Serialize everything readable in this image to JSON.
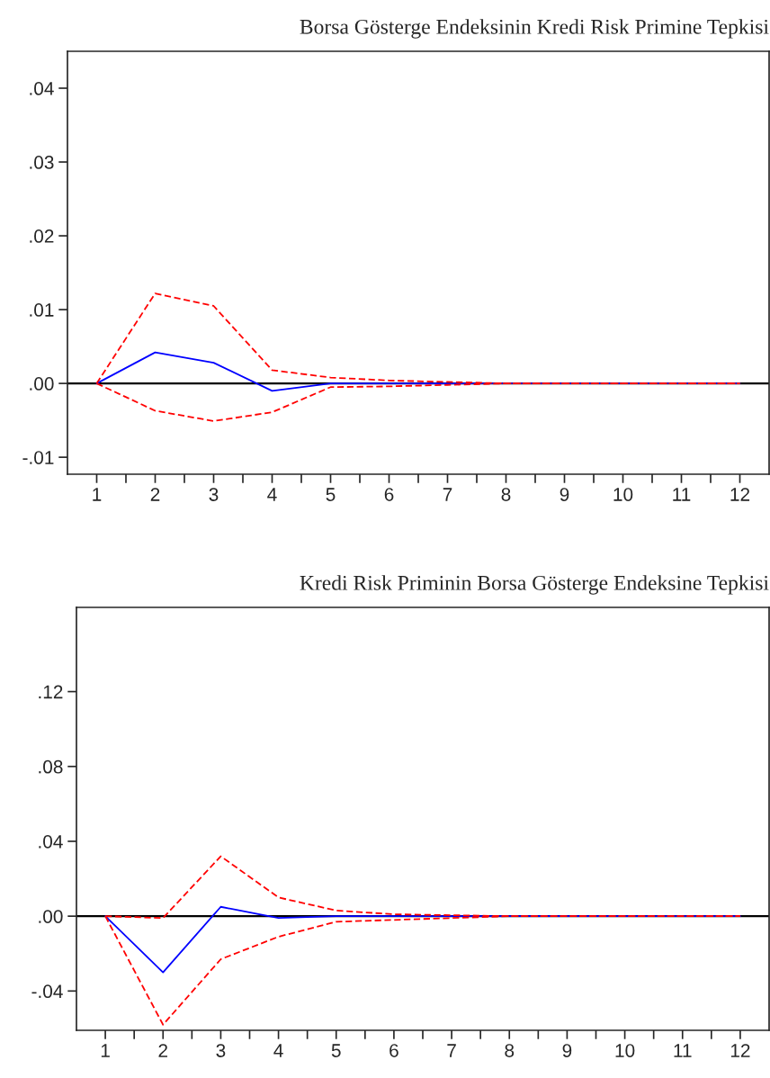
{
  "chart_data": [
    {
      "type": "line",
      "title": "Borsa Gösterge Endeksinin Kredi Risk Primine Tepkisi",
      "x": [
        1,
        2,
        3,
        4,
        5,
        6,
        7,
        8,
        9,
        10,
        11,
        12
      ],
      "series": [
        {
          "color": "#0000ff",
          "line_style": "solid",
          "values": [
            0,
            0.0042,
            0.0028,
            -0.001,
            0,
            0,
            0,
            0,
            0,
            0,
            0,
            0
          ]
        },
        {
          "color": "#ff0000",
          "line_style": "dashed",
          "values": [
            0,
            0.0122,
            0.0105,
            0.0018,
            0.0008,
            0.0004,
            0.0002,
            0,
            0,
            0,
            0,
            0
          ]
        },
        {
          "color": "#ff0000",
          "line_style": "dashed",
          "values": [
            0,
            -0.0037,
            -0.0051,
            -0.0039,
            -0.0005,
            -0.0004,
            -0.0002,
            0,
            0,
            0,
            0,
            0
          ]
        }
      ],
      "xlim": [
        0.5,
        12.5
      ],
      "ylim": [
        -0.0123,
        0.045
      ],
      "xticks": [
        1,
        {
          "value": 1.5,
          "label": null
        },
        2,
        {
          "value": 2.5,
          "label": null
        },
        3,
        {
          "value": 3.5,
          "label": null
        },
        4,
        {
          "value": 4.5,
          "label": null
        },
        5,
        {
          "value": 5.5,
          "label": null
        },
        6,
        {
          "value": 6.5,
          "label": null
        },
        7,
        {
          "value": 7.5,
          "label": null
        },
        8,
        {
          "value": 8.5,
          "label": null
        },
        9,
        {
          "value": 9.5,
          "label": null
        },
        10,
        {
          "value": 10.5,
          "label": null
        },
        11,
        {
          "value": 11.5,
          "label": null
        },
        12
      ],
      "yticks": [
        {
          "value": -0.01,
          "label": "-.01"
        },
        {
          "value": 0,
          "label": ".00"
        },
        {
          "value": 0.01,
          "label": ".01"
        },
        {
          "value": 0.02,
          "label": ".02"
        },
        {
          "value": 0.03,
          "label": ".03"
        },
        {
          "value": 0.04,
          "label": ".04"
        }
      ],
      "ref_lines": [
        {
          "axis": "y",
          "value": 0,
          "color": "#000000"
        }
      ],
      "grid": false,
      "legend": false
    },
    {
      "type": "line",
      "title": "Kredi Risk Priminin Borsa Gösterge Endeksine Tepkisi",
      "x": [
        1,
        2,
        3,
        4,
        5,
        6,
        7,
        8,
        9,
        10,
        11,
        12
      ],
      "series": [
        {
          "color": "#0000ff",
          "line_style": "solid",
          "values": [
            0,
            -0.03,
            0.005,
            -0.001,
            0,
            0,
            0,
            0,
            0,
            0,
            0,
            0
          ]
        },
        {
          "color": "#ff0000",
          "line_style": "dashed",
          "values": [
            0,
            -0.001,
            0.032,
            0.01,
            0.003,
            0.001,
            0.0005,
            0,
            0,
            0,
            0,
            0
          ]
        },
        {
          "color": "#ff0000",
          "line_style": "dashed",
          "values": [
            0,
            -0.058,
            -0.023,
            -0.011,
            -0.003,
            -0.002,
            -0.001,
            0,
            0,
            0,
            0,
            0
          ]
        }
      ],
      "xlim": [
        0.5,
        12.5
      ],
      "ylim": [
        -0.061,
        0.165
      ],
      "xticks": [
        1,
        {
          "value": 1.5,
          "label": null
        },
        2,
        {
          "value": 2.5,
          "label": null
        },
        3,
        {
          "value": 3.5,
          "label": null
        },
        4,
        {
          "value": 4.5,
          "label": null
        },
        5,
        {
          "value": 5.5,
          "label": null
        },
        6,
        {
          "value": 6.5,
          "label": null
        },
        7,
        {
          "value": 7.5,
          "label": null
        },
        8,
        {
          "value": 8.5,
          "label": null
        },
        9,
        {
          "value": 9.5,
          "label": null
        },
        10,
        {
          "value": 10.5,
          "label": null
        },
        11,
        {
          "value": 11.5,
          "label": null
        },
        12
      ],
      "yticks": [
        {
          "value": -0.04,
          "label": "-.04"
        },
        {
          "value": 0,
          "label": ".00"
        },
        {
          "value": 0.04,
          "label": ".04"
        },
        {
          "value": 0.08,
          "label": ".08"
        },
        {
          "value": 0.12,
          "label": ".12"
        }
      ],
      "ref_lines": [
        {
          "axis": "y",
          "value": 0,
          "color": "#000000"
        }
      ],
      "grid": false,
      "legend": false
    }
  ]
}
